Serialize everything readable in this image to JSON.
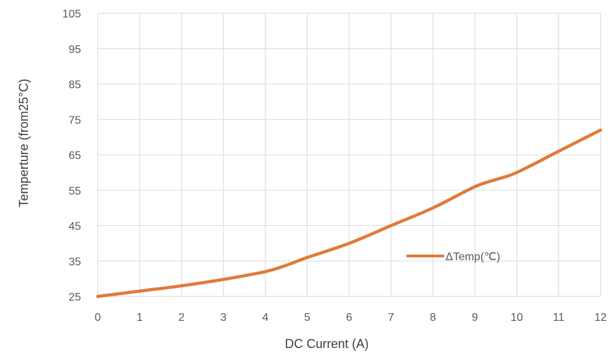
{
  "chart_data": {
    "type": "line",
    "title": "",
    "xlabel": "DC  Current (A)",
    "ylabel": "Temperture (from25°C)",
    "x": [
      0,
      1,
      2,
      3,
      4,
      4.5,
      5,
      6,
      7,
      8,
      9,
      9.5,
      10,
      11,
      12
    ],
    "xticks": [
      0,
      1,
      2,
      3,
      4,
      5,
      6,
      7,
      8,
      9,
      10,
      11,
      12
    ],
    "yticks": [
      25,
      35,
      45,
      55,
      65,
      75,
      85,
      95,
      105
    ],
    "xlim": [
      0,
      12
    ],
    "ylim": [
      25,
      105
    ],
    "grid": true,
    "legend_position": "inside-right",
    "series": [
      {
        "name": "ΔTemp(℃)",
        "color": "#E07A3B",
        "values": [
          25,
          26.5,
          28,
          29.8,
          32,
          33.8,
          36,
          40,
          45,
          50,
          56,
          58,
          60,
          66,
          72
        ]
      }
    ]
  }
}
